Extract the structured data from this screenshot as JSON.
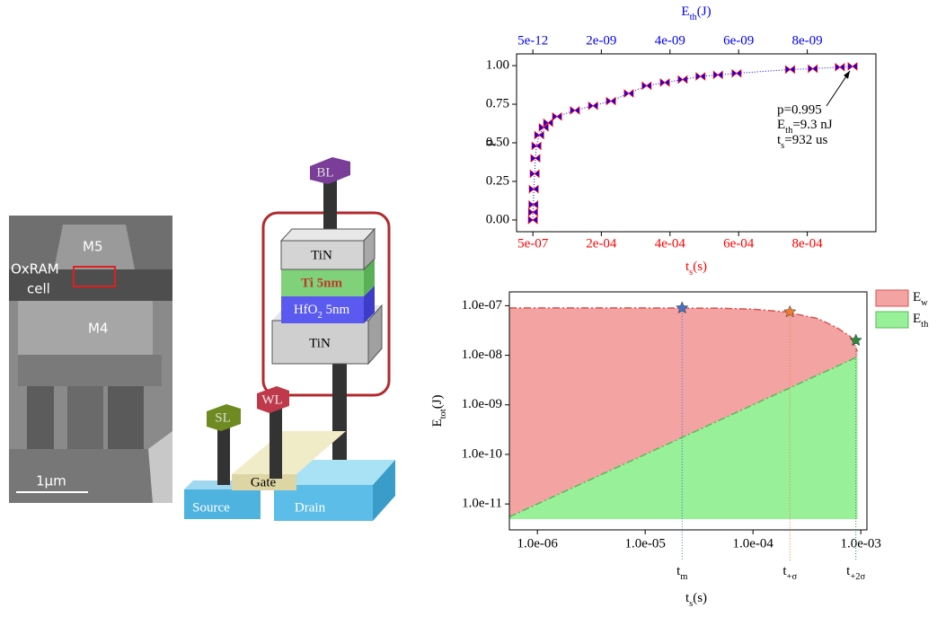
{
  "sem": {
    "labels": [
      "M5",
      "OxRAM",
      "cell",
      "M4"
    ],
    "scale": "1μm"
  },
  "device": {
    "bl": "BL",
    "top_electrode": "TiN",
    "cap": "Ti 5nm",
    "oxide": {
      "text": "HfO",
      "sub": "2",
      "tail": " 5nm"
    },
    "bottom_electrode": "TiN",
    "sl": "SL",
    "wl": "WL",
    "gate": "Gate",
    "source": "Source",
    "drain": "Drain"
  },
  "chart_data": [
    {
      "type": "scatter",
      "ylabel": "p",
      "xlabel": {
        "text": "t",
        "sub": "s",
        "tail": "(s)"
      },
      "x2label": {
        "text": "E",
        "sub": "th",
        "tail": "(J)"
      },
      "x_color": "#ff0000",
      "x2_color": "#0000ff",
      "xlim": [
        -4.7e-05,
        0.001
      ],
      "x2lim": [
        -4.7e-10,
        1e-08
      ],
      "ylim": [
        -0.076,
        1.076
      ],
      "xticks": [
        {
          "value": 5e-07,
          "label": "5e-07"
        },
        {
          "value": 0.0002,
          "label": "2e-04"
        },
        {
          "value": 0.0004,
          "label": "4e-04"
        },
        {
          "value": 0.0006,
          "label": "6e-04"
        },
        {
          "value": 0.0008,
          "label": "8e-04"
        }
      ],
      "x2ticks": [
        {
          "value": 5e-12,
          "label": "5e-12"
        },
        {
          "value": 2e-09,
          "label": "2e-09"
        },
        {
          "value": 4e-09,
          "label": "4e-09"
        },
        {
          "value": 6e-09,
          "label": "6e-09"
        },
        {
          "value": 8e-09,
          "label": "8e-09"
        }
      ],
      "yticks": [
        {
          "value": 0,
          "label": "0.00"
        },
        {
          "value": 0.25,
          "label": "0.25"
        },
        {
          "value": 0.5,
          "label": "0.50"
        },
        {
          "value": 0.75,
          "label": "0.75"
        },
        {
          "value": 1,
          "label": "1.00"
        }
      ],
      "series": [
        {
          "color": "#0000ff",
          "edge_color": "#ff0000",
          "x": [
            5e-07,
            1e-06,
            2e-06,
            3e-06,
            5.7e-06,
            8e-06,
            1.1e-05,
            1.9e-05,
            3.2e-05,
            4.5e-05,
            7.1e-05,
            0.000123,
            0.000176,
            0.000228,
            0.00028,
            0.000332,
            0.000385,
            0.000437,
            0.000489,
            0.00054,
            0.000594,
            0.00075,
            0.000816,
            0.000895,
            0.000932
          ],
          "values": [
            0,
            0.05,
            0.1,
            0.2,
            0.3,
            0.4,
            0.48,
            0.55,
            0.6,
            0.63,
            0.67,
            0.71,
            0.74,
            0.77,
            0.82,
            0.87,
            0.89,
            0.91,
            0.93,
            0.94,
            0.95,
            0.975,
            0.98,
            0.99,
            0.995
          ]
        }
      ],
      "annotation": [
        "p=0.995",
        {
          "text": "E",
          "sub": "th",
          "tail": "=9.3 nJ"
        },
        {
          "text": "t",
          "sub": "s",
          "tail": "=932 us"
        }
      ]
    },
    {
      "type": "area",
      "log_x": true,
      "log_y": true,
      "xlabel": {
        "text": "t",
        "sub": "s",
        "tail": "(s)"
      },
      "ylabel": {
        "text": "E",
        "sub": "tot",
        "tail": "(J)"
      },
      "xlim": [
        5.5e-07,
        0.00114
      ],
      "ylim": [
        3e-12,
        1.9e-07
      ],
      "xticks": [
        {
          "value": 1e-06,
          "label": "1.0e-06"
        },
        {
          "value": 1e-05,
          "label": "1.0e-05"
        },
        {
          "value": 0.0001,
          "label": "1.0e-04"
        },
        {
          "value": 0.001,
          "label": "1.0e-03"
        }
      ],
      "yticks": [
        {
          "value": 1e-11,
          "label": "1.0e-11"
        },
        {
          "value": 1e-10,
          "label": "1.0e-10"
        },
        {
          "value": 1e-09,
          "label": "1.0e-09"
        },
        {
          "value": 1e-08,
          "label": "1.0e-08"
        },
        {
          "value": 1e-07,
          "label": "1.0e-07"
        }
      ],
      "x": [
        5.5e-07,
        1e-06,
        1e-05,
        5e-05,
        0.0001,
        0.0002,
        0.0004,
        0.0006,
        0.0008,
        0.00093
      ],
      "series": [
        {
          "name": {
            "text": "E",
            "sub": "w"
          },
          "color": "#f4a3a3",
          "line_color": "#d9534f",
          "values": [
            9e-08,
            9e-08,
            9e-08,
            8.9e-08,
            8.5e-08,
            7.5e-08,
            5.5e-08,
            3.6e-08,
            2.4e-08,
            1.2e-08
          ]
        },
        {
          "name": {
            "text": "E",
            "sub": "th"
          },
          "color": "#98f098",
          "line_color": "#5cb85c",
          "values": [
            5.5e-12,
            1e-11,
            1e-10,
            5e-10,
            1e-09,
            2e-09,
            4e-09,
            6e-09,
            8e-09,
            9.3e-09
          ]
        }
      ],
      "legend": "outside-right",
      "markers": [
        {
          "label": {
            "text": "t",
            "sub": "m"
          },
          "x": 2.2e-05,
          "y": 9e-08,
          "color": "#4472c4"
        },
        {
          "label": {
            "text": "t",
            "sub": "+σ"
          },
          "x": 0.00022,
          "y": 7.5e-08,
          "color": "#ed7d31"
        },
        {
          "label": {
            "text": "t",
            "sub": "+2σ"
          },
          "x": 0.0009,
          "y": 2e-08,
          "color": "#2e8b3e"
        }
      ]
    }
  ]
}
